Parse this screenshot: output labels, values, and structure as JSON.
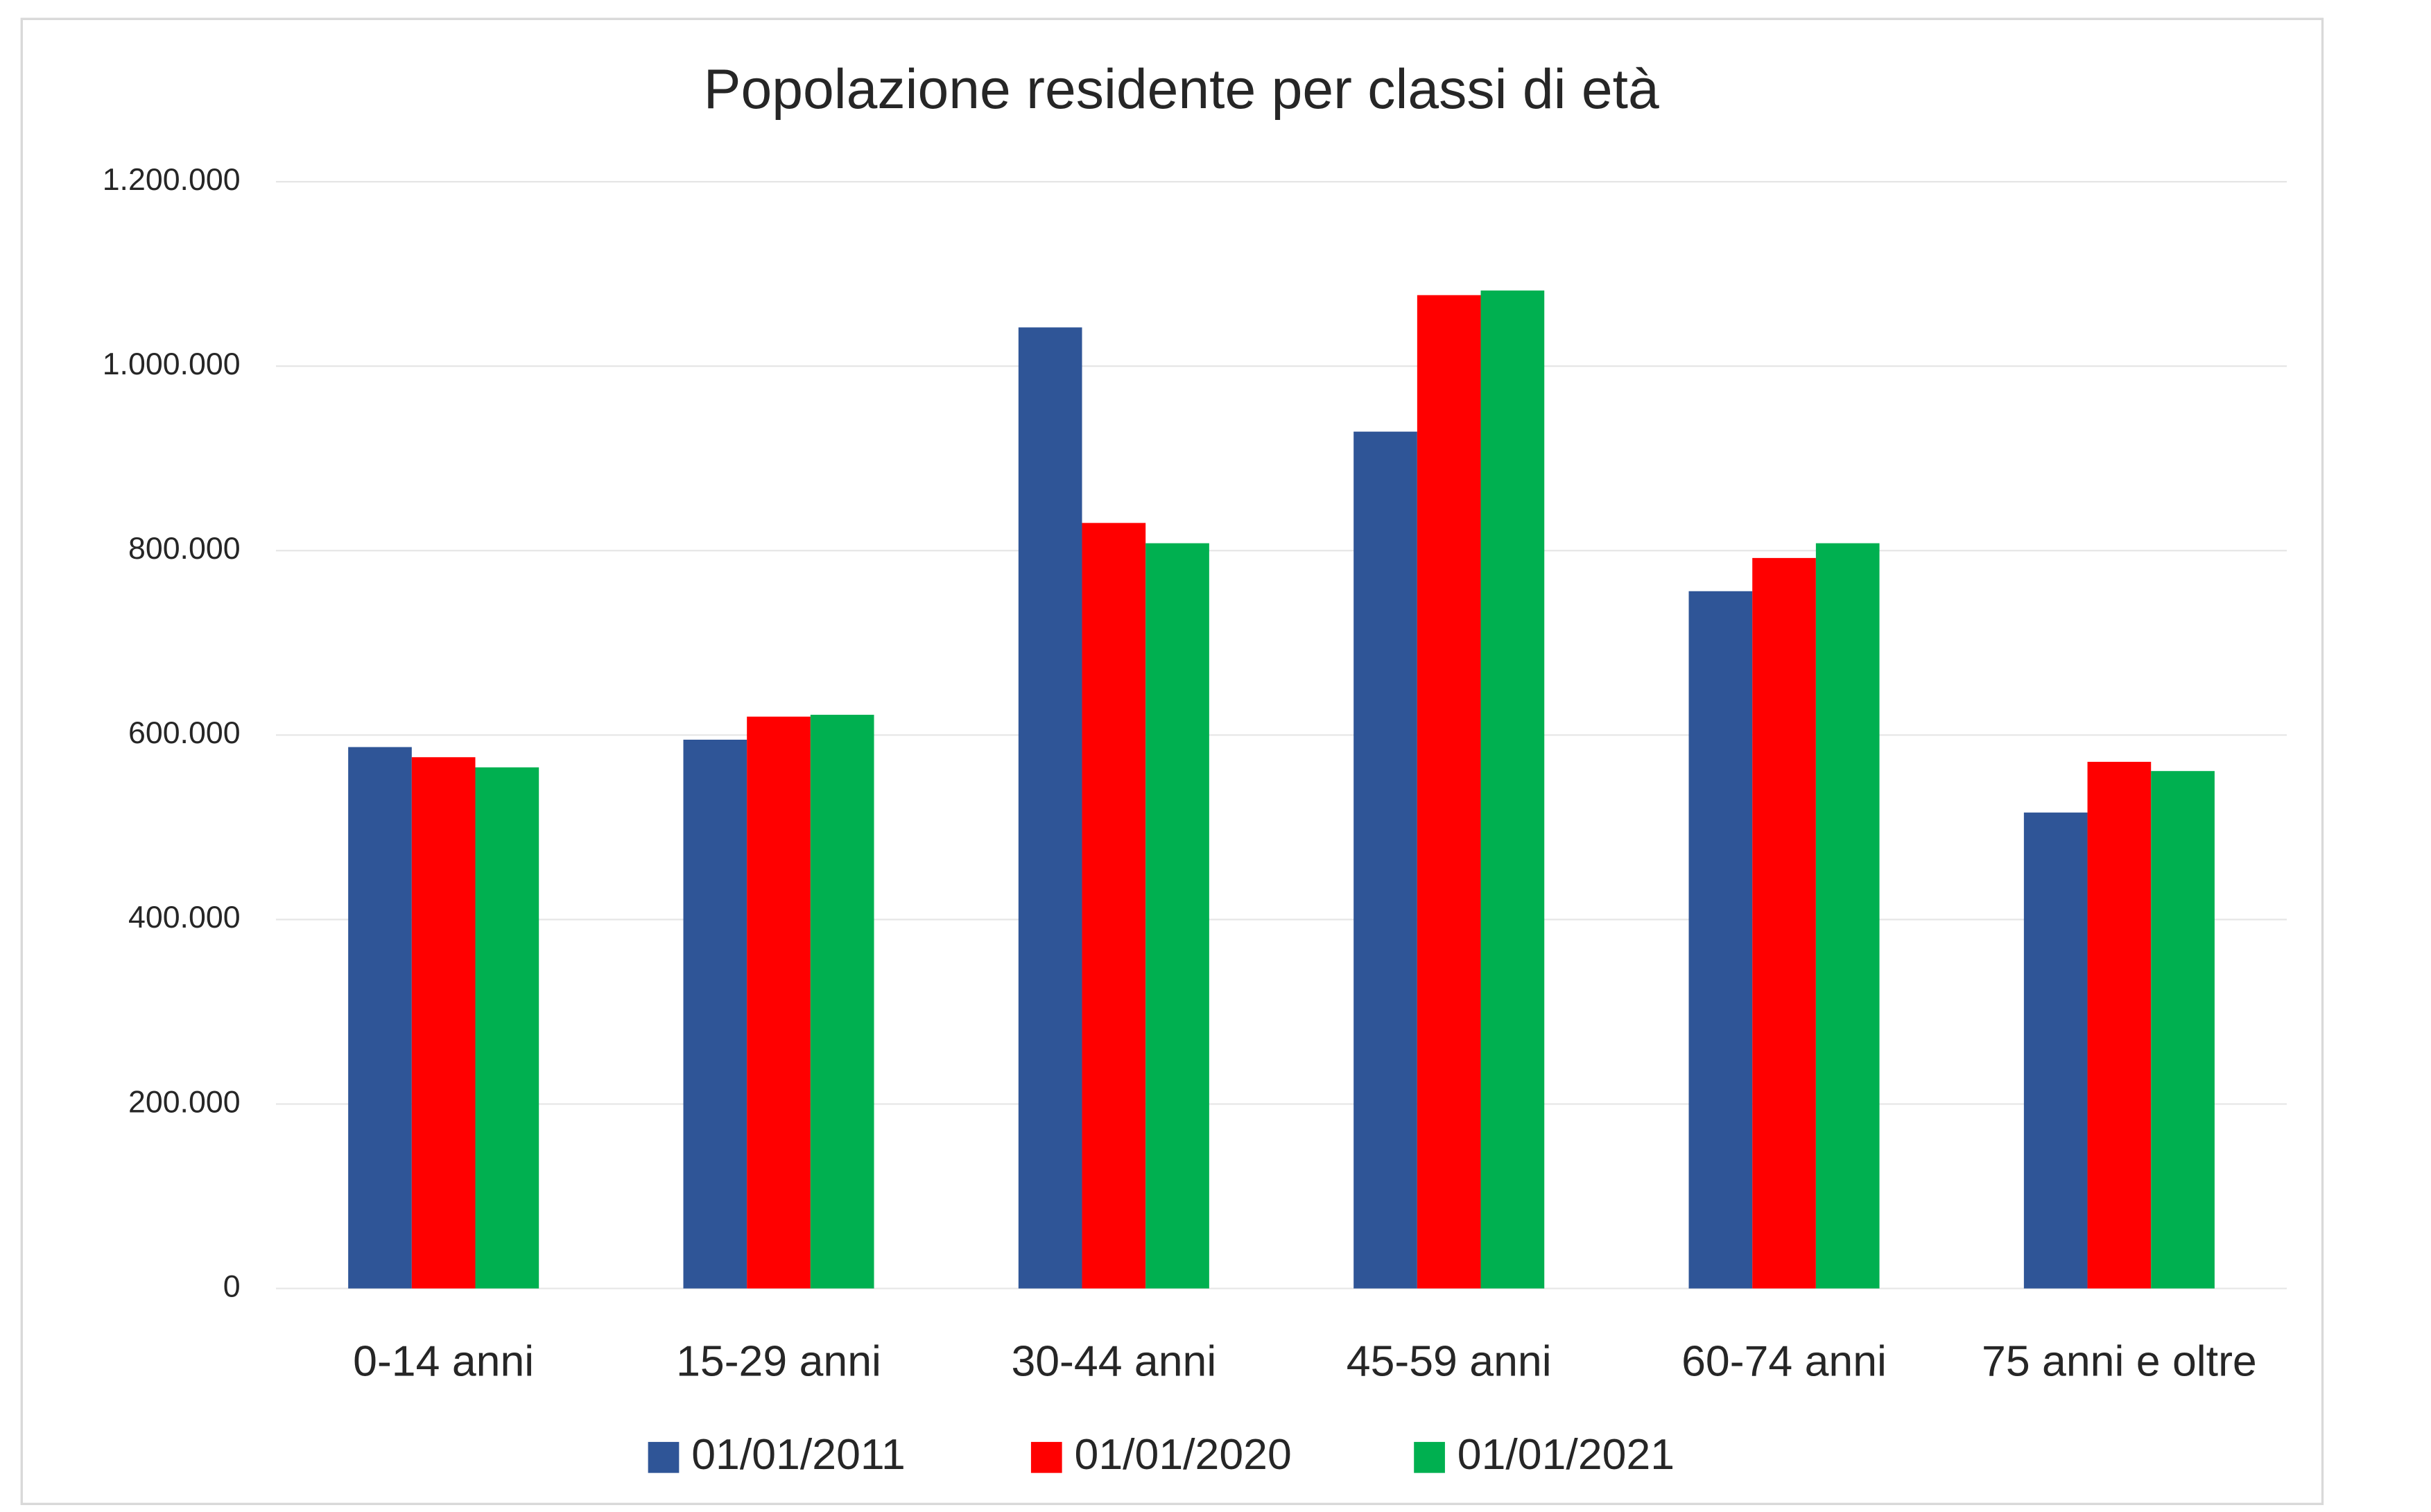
{
  "chart_data": {
    "type": "bar",
    "title": "Popolazione residente per classi di età",
    "categories": [
      "0-14 anni",
      "15-29 anni",
      "30-44 anni",
      "45-59 anni",
      "60-74 anni",
      "75 anni e oltre"
    ],
    "series": [
      {
        "name": "01/01/2011",
        "color": "#2f5597",
        "values": [
          587000,
          595000,
          1042000,
          929000,
          756000,
          516000
        ]
      },
      {
        "name": "01/01/2020",
        "color": "#ff0000",
        "values": [
          576000,
          620000,
          830000,
          1077000,
          792000,
          571000
        ]
      },
      {
        "name": "01/01/2021",
        "color": "#00b050",
        "values": [
          565000,
          622000,
          808000,
          1082000,
          808000,
          561000
        ]
      }
    ],
    "ylim": [
      0,
      1200000
    ],
    "yticks": [
      0,
      {
        "value": 200000,
        "label": "200.000"
      },
      {
        "value": 400000,
        "label": "400.000"
      },
      {
        "value": 600000,
        "label": "600.000"
      },
      {
        "value": 800000,
        "label": "800.000"
      },
      {
        "value": 1000000,
        "label": "1.000.000"
      },
      {
        "value": 1200000,
        "label": "1.200.000"
      }
    ],
    "grid": true,
    "legend": "bottom"
  }
}
